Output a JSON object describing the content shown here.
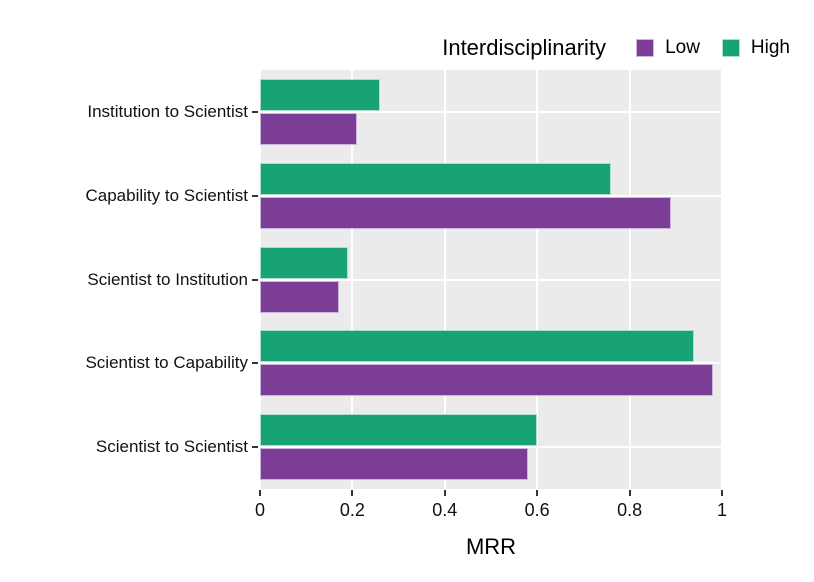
{
  "chart_data": {
    "type": "bar",
    "orientation": "horizontal",
    "title": "",
    "legend_title": "Interdisciplinarity",
    "legend_position": "top-right",
    "xlabel": "MRR",
    "ylabel": "",
    "xlim": [
      0,
      1
    ],
    "xticks": [
      0,
      0.2,
      0.4,
      0.6,
      0.8,
      1
    ],
    "xtick_labels": [
      "0",
      "0.2",
      "0.4",
      "0.6",
      "0.8",
      "1"
    ],
    "grid": "on",
    "panel_bg": "#ebebeb",
    "grid_color": "#ffffff",
    "categories": [
      "Institution to Scientist",
      "Capability to Scientist",
      "Scientist to Institution",
      "Scientist to Capability",
      "Scientist to Scientist"
    ],
    "series": [
      {
        "name": "Low",
        "color": "#7c3d97",
        "edge_color": "#cdb6da",
        "values": [
          0.21,
          0.89,
          0.17,
          0.98,
          0.58
        ]
      },
      {
        "name": "High",
        "color": "#18a376",
        "edge_color": "#afdccc",
        "values": [
          0.26,
          0.76,
          0.19,
          0.94,
          0.6
        ]
      }
    ],
    "group_order_top_to_bottom": [
      "High",
      "Low"
    ]
  }
}
